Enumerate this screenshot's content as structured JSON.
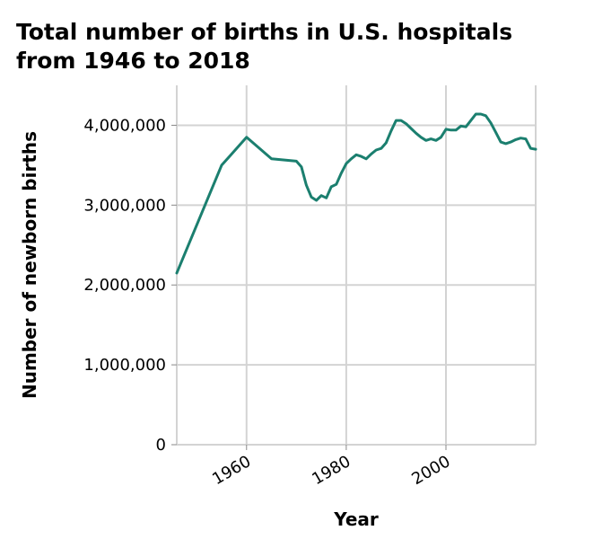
{
  "chart_data": {
    "type": "line",
    "title_lines": [
      "Total number of births in U.S. hospitals",
      "from 1946 to 2018"
    ],
    "xlabel": "Year",
    "ylabel": "Number of newborn births",
    "xlim": [
      1946,
      2018
    ],
    "ylim": [
      0,
      4500000
    ],
    "x_ticks": [
      1960,
      1980,
      2000
    ],
    "x_tick_labels": [
      "1960",
      "1980",
      "2000"
    ],
    "y_ticks": [
      0,
      1000000,
      2000000,
      3000000,
      4000000
    ],
    "y_tick_labels": [
      "0",
      "1,000,000",
      "2,000,000",
      "3,000,000",
      "4,000,000"
    ],
    "grid": true,
    "line_color": "#1b7f6f",
    "series": [
      {
        "x": [
          1946,
          1955,
          1960,
          1965,
          1970,
          1971,
          1972,
          1973,
          1974,
          1975,
          1976,
          1977,
          1978,
          1979,
          1980,
          1981,
          1982,
          1983,
          1984,
          1985,
          1986,
          1987,
          1988,
          1989,
          1990,
          1991,
          1992,
          1993,
          1994,
          1995,
          1996,
          1997,
          1998,
          1999,
          2000,
          2001,
          2002,
          2003,
          2004,
          2005,
          2006,
          2007,
          2008,
          2009,
          2010,
          2011,
          2012,
          2013,
          2014,
          2015,
          2016,
          2017,
          2018
        ],
        "y": [
          2150000,
          3500000,
          3850000,
          3580000,
          3550000,
          3480000,
          3250000,
          3100000,
          3060000,
          3120000,
          3090000,
          3230000,
          3260000,
          3400000,
          3520000,
          3580000,
          3630000,
          3610000,
          3580000,
          3640000,
          3690000,
          3710000,
          3780000,
          3930000,
          4060000,
          4060000,
          4020000,
          3960000,
          3900000,
          3850000,
          3810000,
          3830000,
          3810000,
          3850000,
          3950000,
          3940000,
          3940000,
          3990000,
          3980000,
          4060000,
          4140000,
          4140000,
          4120000,
          4030000,
          3910000,
          3790000,
          3770000,
          3790000,
          3820000,
          3840000,
          3830000,
          3710000,
          3700000
        ]
      }
    ]
  }
}
